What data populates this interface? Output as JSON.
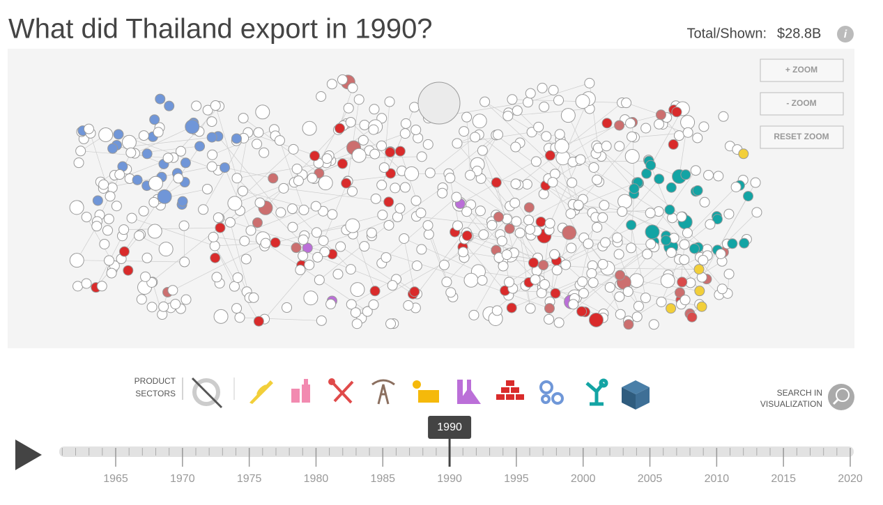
{
  "header": {
    "title": "What did Thailand export in 1990?",
    "total_label": "Total/Shown:",
    "total_value": "$28.8B",
    "info": "i"
  },
  "zoom": {
    "zoom_in": "+ ZOOM",
    "zoom_out": "- ZOOM",
    "reset": "RESET ZOOM"
  },
  "sectors": {
    "label": [
      "PRODUCT",
      "SECTORS"
    ]
  },
  "search": {
    "label": [
      "SEARCH IN",
      "VISUALIZATION"
    ]
  },
  "timeline": {
    "selected": "1990",
    "years": [
      "1965",
      "1970",
      "1975",
      "1980",
      "1985",
      "1990",
      "1995",
      "2000",
      "2005",
      "2010",
      "2015",
      "2020"
    ]
  }
}
